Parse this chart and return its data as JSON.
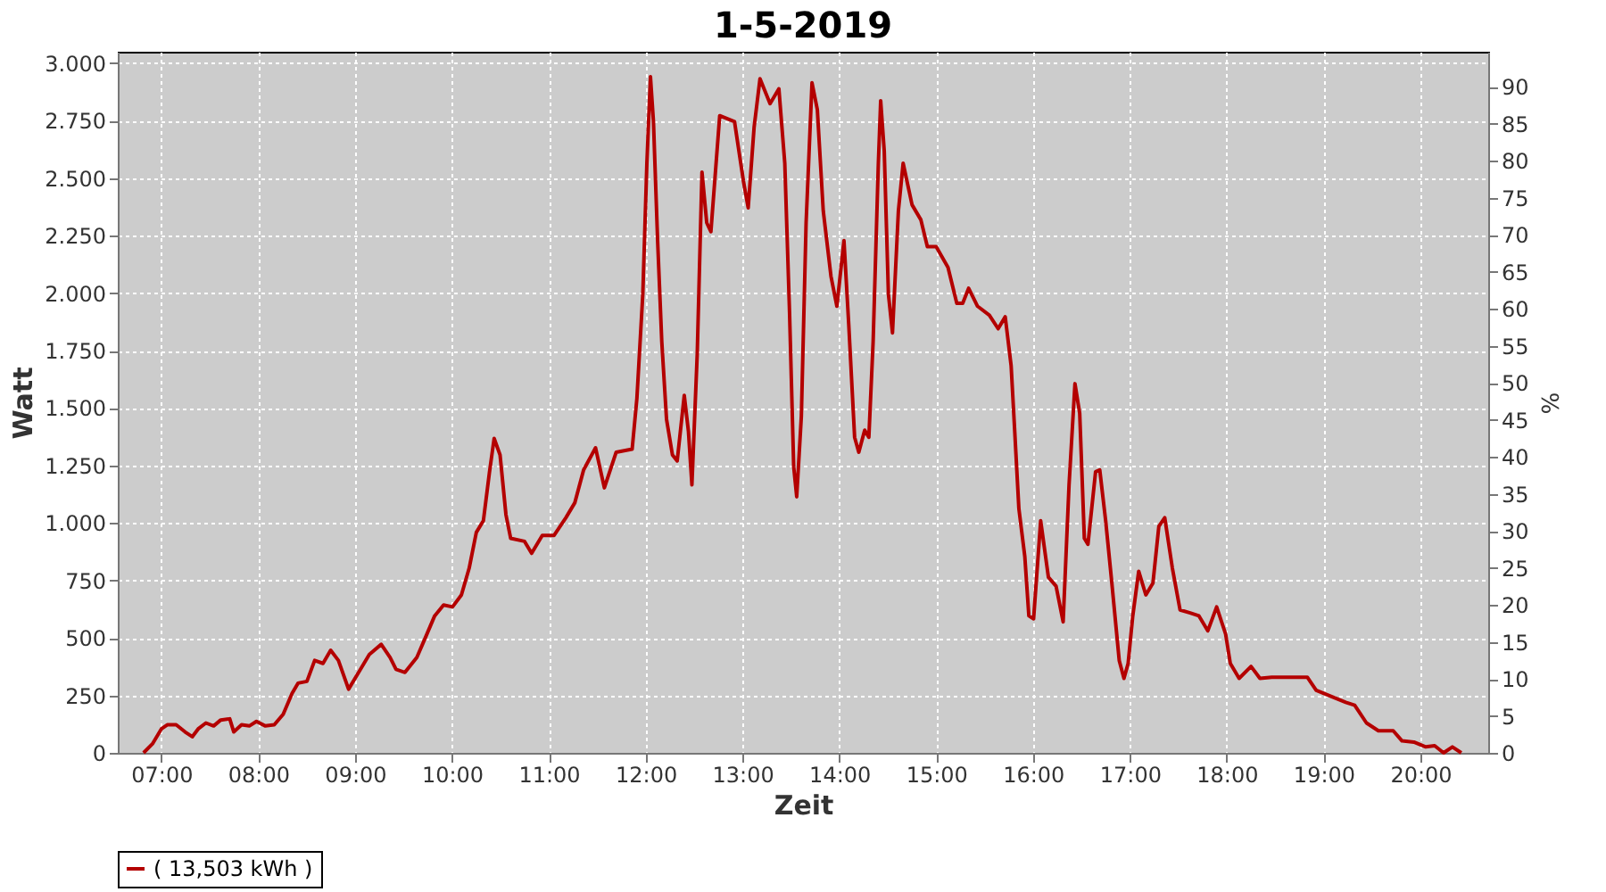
{
  "chart_data": {
    "type": "line",
    "title": "1-5-2019",
    "xlabel": "Zeit",
    "ylabel": "Watt",
    "y2label": "%",
    "xlim": [
      6.55,
      20.7
    ],
    "xticks": [
      {
        "value": 7,
        "label": "07:00"
      },
      {
        "value": 8,
        "label": "08:00"
      },
      {
        "value": 9,
        "label": "09:00"
      },
      {
        "value": 10,
        "label": "10:00"
      },
      {
        "value": 11,
        "label": "11:00"
      },
      {
        "value": 12,
        "label": "12:00"
      },
      {
        "value": 13,
        "label": "13:00"
      },
      {
        "value": 14,
        "label": "14:00"
      },
      {
        "value": 15,
        "label": "15:00"
      },
      {
        "value": 16,
        "label": "16:00"
      },
      {
        "value": 17,
        "label": "17:00"
      },
      {
        "value": 18,
        "label": "18:00"
      },
      {
        "value": 19,
        "label": "19:00"
      },
      {
        "value": 20,
        "label": "20:00"
      }
    ],
    "ylim": [
      0,
      3050
    ],
    "yticks": [
      0,
      250,
      500,
      750,
      {
        "value": 1000,
        "label": "1.000"
      },
      {
        "value": 1250,
        "label": "1.250"
      },
      {
        "value": 1500,
        "label": "1.500"
      },
      {
        "value": 1750,
        "label": "1.750"
      },
      {
        "value": 2000,
        "label": "2.000"
      },
      {
        "value": 2250,
        "label": "2.250"
      },
      {
        "value": 2500,
        "label": "2.500"
      },
      {
        "value": 2750,
        "label": "2.750"
      },
      {
        "value": 3000,
        "label": "3.000"
      }
    ],
    "y2lim": [
      0,
      94.7
    ],
    "y2ticks": [
      0,
      5,
      10,
      15,
      20,
      25,
      30,
      35,
      40,
      45,
      50,
      55,
      60,
      65,
      70,
      75,
      80,
      85,
      90
    ],
    "grid": true,
    "legend": "bottom",
    "marker": "none",
    "line_style": "solid",
    "series": [
      {
        "name": "( 13,503 kWh )",
        "color": "#b40000",
        "x": [
          6.816,
          6.908,
          7.0,
          7.061,
          7.153,
          7.245,
          7.319,
          7.38,
          7.46,
          7.54,
          7.613,
          7.706,
          7.748,
          7.828,
          7.908,
          7.982,
          8.074,
          8.166,
          8.258,
          8.35,
          8.411,
          8.503,
          8.583,
          8.669,
          8.748,
          8.828,
          8.933,
          9.055,
          9.147,
          9.27,
          9.362,
          9.423,
          9.515,
          9.638,
          9.73,
          9.822,
          9.914,
          10.006,
          10.098,
          10.178,
          10.252,
          10.325,
          10.387,
          10.436,
          10.497,
          10.558,
          10.607,
          10.75,
          10.823,
          10.933,
          11.055,
          11.177,
          11.269,
          11.36,
          11.483,
          11.574,
          11.696,
          11.861,
          11.91,
          11.971,
          12.013,
          12.05,
          12.081,
          12.124,
          12.167,
          12.216,
          12.277,
          12.326,
          12.399,
          12.442,
          12.478,
          12.533,
          12.582,
          12.631,
          12.674,
          12.765,
          12.918,
          13.01,
          13.059,
          13.12,
          13.181,
          13.285,
          13.376,
          13.437,
          13.486,
          13.529,
          13.56,
          13.608,
          13.657,
          13.718,
          13.773,
          13.834,
          13.914,
          13.975,
          14.048,
          14.097,
          14.158,
          14.201,
          14.262,
          14.305,
          14.349,
          14.403,
          14.427,
          14.464,
          14.507,
          14.549,
          14.61,
          14.659,
          14.751,
          14.842,
          14.909,
          15.0,
          15.122,
          15.213,
          15.274,
          15.335,
          15.427,
          15.549,
          15.64,
          15.713,
          15.774,
          15.811,
          15.854,
          15.915,
          15.957,
          16.006,
          16.079,
          16.159,
          16.238,
          16.311,
          16.372,
          16.433,
          16.482,
          16.53,
          16.567,
          16.646,
          16.689,
          16.75,
          16.811,
          16.89,
          16.939,
          16.982,
          17.03,
          17.091,
          17.165,
          17.238,
          17.299,
          17.36,
          17.439,
          17.518,
          17.622,
          17.713,
          17.805,
          17.896,
          17.988,
          18.037,
          18.128,
          18.251,
          18.343,
          18.465,
          18.709,
          18.832,
          18.924,
          19.076,
          19.229,
          19.321,
          19.443,
          19.566,
          19.719,
          19.81,
          19.933,
          20.055,
          20.147,
          20.239,
          20.33,
          20.422
        ],
        "values": [
          0,
          39,
          104,
          122,
          122,
          91,
          70,
          104,
          130,
          117,
          143,
          148,
          91,
          122,
          117,
          137,
          117,
          122,
          168,
          259,
          303,
          311,
          402,
          389,
          446,
          402,
          277,
          363,
          428,
          472,
          415,
          363,
          350,
          415,
          505,
          596,
          643,
          635,
          687,
          803,
          959,
          1010,
          1218,
          1368,
          1296,
          1036,
          933,
          920,
          868,
          946,
          946,
          1023,
          1088,
          1231,
          1327,
          1153,
          1308,
          1321,
          1542,
          1995,
          2565,
          2941,
          2746,
          2228,
          1788,
          1451,
          1296,
          1270,
          1555,
          1399,
          1166,
          1736,
          2526,
          2306,
          2267,
          2772,
          2746,
          2487,
          2371,
          2721,
          2933,
          2824,
          2889,
          2565,
          1917,
          1244,
          1114,
          1464,
          2306,
          2915,
          2798,
          2358,
          2073,
          1943,
          2228,
          1866,
          1373,
          1308,
          1404,
          1373,
          1788,
          2565,
          2837,
          2617,
          1995,
          1827,
          2358,
          2565,
          2384,
          2319,
          2202,
          2202,
          2112,
          1956,
          1956,
          2021,
          1943,
          1904,
          1845,
          1897,
          1684,
          1399,
          1062,
          855,
          596,
          583,
          1010,
          764,
          725,
          570,
          1166,
          1606,
          1477,
          933,
          907,
          1223,
          1231,
          1010,
          751,
          402,
          324,
          389,
          596,
          790,
          687,
          738,
          985,
          1023,
          803,
          622,
          609,
          596,
          531,
          635,
          518,
          389,
          324,
          376,
          324,
          329,
          329,
          329,
          272,
          246,
          220,
          207,
          130,
          96,
          96,
          52,
          47,
          26,
          31,
          0,
          26,
          0
        ]
      }
    ]
  }
}
